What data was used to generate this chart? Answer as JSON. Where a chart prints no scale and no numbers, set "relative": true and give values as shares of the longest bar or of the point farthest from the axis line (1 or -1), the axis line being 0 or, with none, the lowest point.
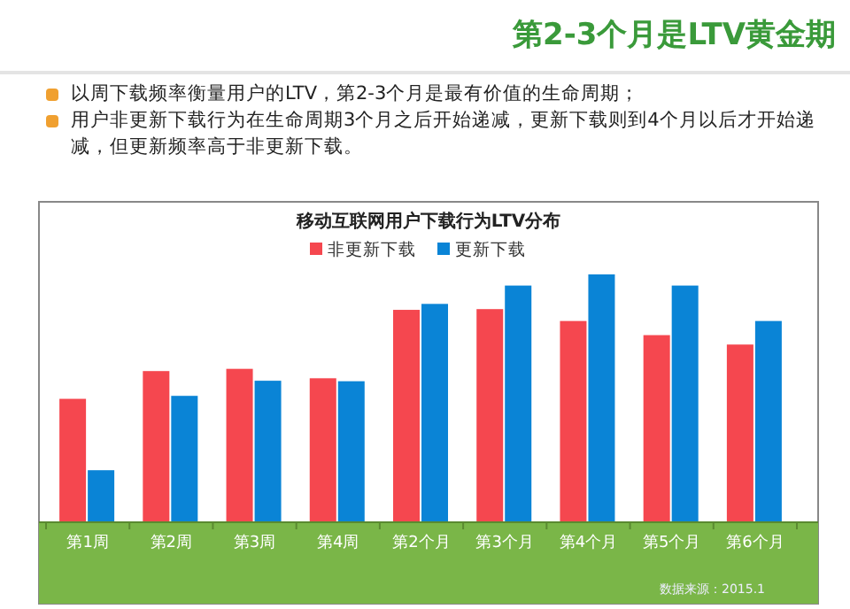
{
  "chart_data": {
    "type": "bar",
    "title": "第2-3个月是LTV黄金期",
    "subtitle": "移动互联网用户下载行为LTV分布",
    "annotations": [
      "以周下载频率衡量用户的LTV，第2-3个月是最有价值的生命周期；",
      "用户非更新下载行为在生命周期3个月之后开始递减，更新下载则到4个月以后才开始递减，但更新频率高于非更新下载。",
      "数据来源：2015.1"
    ],
    "categories": [
      "第1周",
      "第2周",
      "第3周",
      "第4周",
      "第2个月",
      "第3个月",
      "第4个月",
      "第5个月",
      "第6个月"
    ],
    "relative": true,
    "legend": "top",
    "grid": false,
    "series": [
      {
        "name": "非更新下载",
        "color": "#f5474f",
        "values": [
          0.498,
          0.61,
          0.619,
          0.581,
          0.857,
          0.86,
          0.812,
          0.755,
          0.717
        ]
      },
      {
        "name": "更新下载",
        "color": "#0a84d6",
        "values": [
          0.21,
          0.51,
          0.571,
          0.569,
          0.881,
          0.955,
          1,
          0.955,
          0.812
        ]
      }
    ]
  }
}
